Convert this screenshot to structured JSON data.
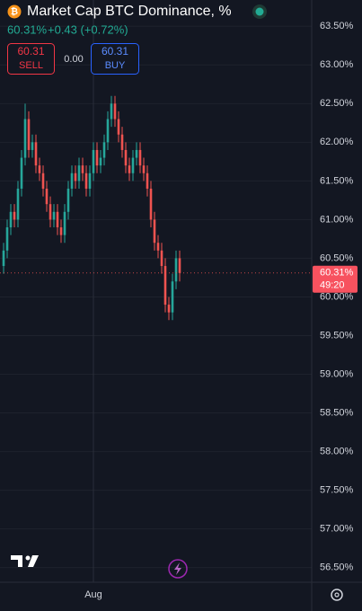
{
  "header": {
    "title": "Market Cap BTC Dominance, %",
    "price": "60.31%",
    "change": "+0.43 (+0.72%)"
  },
  "trade": {
    "sell_price": "60.31",
    "sell_label": "SELL",
    "spread": "0.00",
    "buy_price": "60.31",
    "buy_label": "BUY"
  },
  "chart_data": {
    "type": "candlestick",
    "categories": [
      null,
      null,
      null,
      null,
      null,
      null,
      null,
      null,
      null,
      null,
      null,
      null,
      null,
      null,
      null,
      null,
      null,
      null,
      null,
      null,
      null,
      null,
      null,
      null,
      null,
      "Aug",
      null,
      null,
      null,
      null,
      null,
      null,
      null,
      null,
      null,
      null,
      null,
      null,
      null,
      null,
      null,
      null,
      null,
      null,
      null,
      null,
      null,
      null,
      null,
      null
    ],
    "open": [
      60.4,
      60.6,
      60.9,
      61.1,
      61.0,
      61.4,
      61.8,
      62.3,
      61.9,
      62.0,
      61.7,
      61.6,
      61.4,
      61.2,
      61.0,
      61.1,
      60.9,
      60.8,
      61.1,
      61.4,
      61.6,
      61.5,
      61.7,
      61.6,
      61.4,
      61.6,
      61.9,
      61.7,
      61.8,
      62.0,
      62.3,
      62.5,
      62.3,
      62.1,
      61.9,
      61.7,
      61.6,
      61.8,
      61.9,
      61.7,
      61.6,
      61.4,
      61.0,
      60.7,
      60.6,
      60.4,
      59.9,
      59.8,
      60.2,
      60.5
    ],
    "high": [
      60.7,
      61.0,
      61.2,
      61.2,
      61.5,
      61.9,
      62.5,
      62.4,
      62.1,
      62.1,
      61.8,
      61.7,
      61.5,
      61.3,
      61.2,
      61.2,
      61.0,
      61.2,
      61.5,
      61.7,
      61.7,
      61.8,
      61.8,
      61.7,
      61.7,
      62.0,
      62.0,
      61.9,
      62.1,
      62.4,
      62.6,
      62.6,
      62.4,
      62.2,
      62.0,
      61.8,
      61.9,
      62.0,
      62.0,
      61.8,
      61.7,
      61.5,
      61.1,
      60.8,
      60.7,
      60.5,
      60.0,
      60.3,
      60.6,
      60.6
    ],
    "low": [
      60.3,
      60.5,
      60.8,
      60.9,
      60.9,
      61.3,
      61.7,
      61.8,
      61.8,
      61.6,
      61.5,
      61.3,
      61.1,
      60.9,
      60.9,
      60.8,
      60.7,
      60.7,
      61.0,
      61.3,
      61.4,
      61.4,
      61.5,
      61.3,
      61.3,
      61.5,
      61.6,
      61.6,
      61.7,
      61.9,
      62.2,
      62.2,
      62.0,
      61.8,
      61.6,
      61.5,
      61.5,
      61.7,
      61.6,
      61.5,
      61.3,
      60.9,
      60.6,
      60.5,
      60.3,
      59.8,
      59.7,
      59.7,
      60.1,
      60.2
    ],
    "close": [
      60.6,
      60.9,
      61.1,
      61.0,
      61.4,
      61.8,
      62.3,
      61.9,
      62.0,
      61.7,
      61.6,
      61.4,
      61.2,
      61.0,
      61.1,
      60.9,
      60.8,
      61.1,
      61.4,
      61.6,
      61.5,
      61.7,
      61.6,
      61.4,
      61.6,
      61.9,
      61.7,
      61.8,
      62.0,
      62.3,
      62.5,
      62.3,
      62.1,
      61.9,
      61.7,
      61.6,
      61.8,
      61.9,
      61.7,
      61.6,
      61.4,
      61.0,
      60.7,
      60.6,
      60.4,
      59.9,
      59.8,
      60.2,
      60.5,
      60.31
    ],
    "ylim": [
      56.31,
      63.84
    ],
    "yticks": [
      {
        "value": 63.5,
        "label": "63.50%"
      },
      {
        "value": 63.0,
        "label": "63.00%"
      },
      {
        "value": 62.5,
        "label": "62.50%"
      },
      {
        "value": 62.0,
        "label": "62.00%"
      },
      {
        "value": 61.5,
        "label": "61.50%"
      },
      {
        "value": 61.0,
        "label": "61.00%"
      },
      {
        "value": 60.5,
        "label": "60.50%"
      },
      {
        "value": 60.0,
        "label": "60.00%"
      },
      {
        "value": 59.5,
        "label": "59.50%"
      },
      {
        "value": 59.0,
        "label": "59.00%"
      },
      {
        "value": 58.5,
        "label": "58.50%"
      },
      {
        "value": 58.0,
        "label": "58.00%"
      },
      {
        "value": 57.5,
        "label": "57.50%"
      },
      {
        "value": 57.0,
        "label": "57.00%"
      },
      {
        "value": 56.5,
        "label": "56.50%"
      }
    ],
    "grid": true,
    "up_color": "#26a69a",
    "down_color": "#ef5350",
    "last_price_label": "60.31%",
    "countdown": "49:20"
  }
}
